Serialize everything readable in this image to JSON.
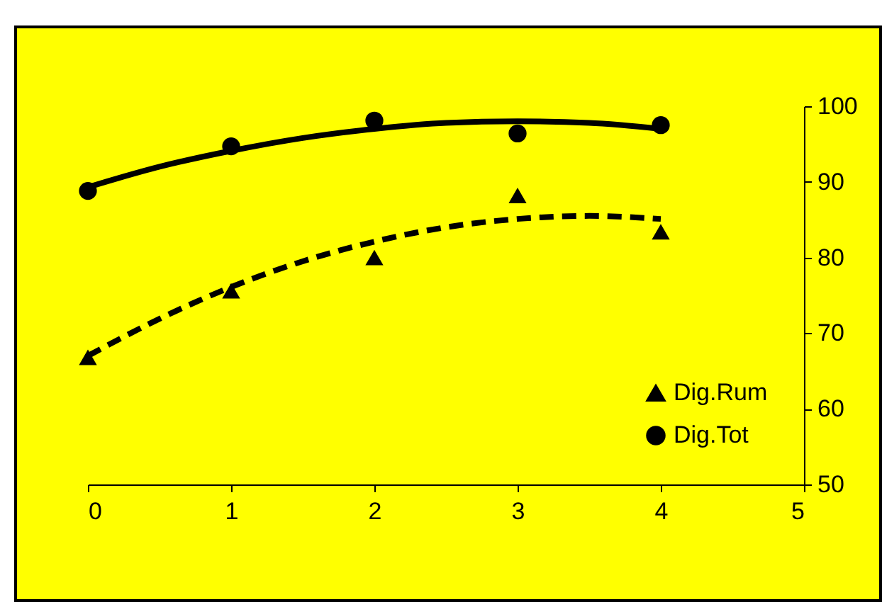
{
  "chart_data": {
    "type": "scatter",
    "xlim": [
      0,
      5
    ],
    "xticks": [
      0,
      1,
      2,
      3,
      4,
      5
    ],
    "ylim": [
      50,
      100
    ],
    "yticks": [
      50,
      60,
      70,
      80,
      90,
      100
    ],
    "grid": false,
    "legend": "bottom right",
    "series": [
      {
        "name": "Dig.Rum",
        "marker": "triangle",
        "color": "#000000",
        "x": [
          0,
          1,
          2,
          3,
          4
        ],
        "values": [
          66.8,
          75.6,
          80.0,
          88.2,
          83.4
        ]
      },
      {
        "name": "Dig.Tot",
        "marker": "circle",
        "color": "#000000",
        "x": [
          0,
          1,
          2,
          3,
          4
        ],
        "values": [
          88.8,
          94.7,
          98.1,
          96.4,
          97.5
        ]
      },
      {
        "type": "line",
        "line_style": "dashed",
        "marker": "none",
        "color": "#000000",
        "x": [
          0,
          0.5,
          1,
          1.5,
          2,
          2.5,
          3,
          3.5,
          4
        ],
        "values": [
          67.0,
          71.9,
          76.1,
          79.5,
          82.1,
          84.0,
          85.1,
          85.5,
          85.1
        ]
      },
      {
        "type": "line",
        "line_style": "solid",
        "marker": "none",
        "color": "#000000",
        "x": [
          0,
          0.5,
          1,
          1.5,
          2,
          2.5,
          3,
          3.5,
          4
        ],
        "values": [
          89.3,
          92.0,
          94.1,
          95.8,
          97.0,
          97.8,
          98.0,
          97.8,
          97.0
        ]
      }
    ]
  }
}
